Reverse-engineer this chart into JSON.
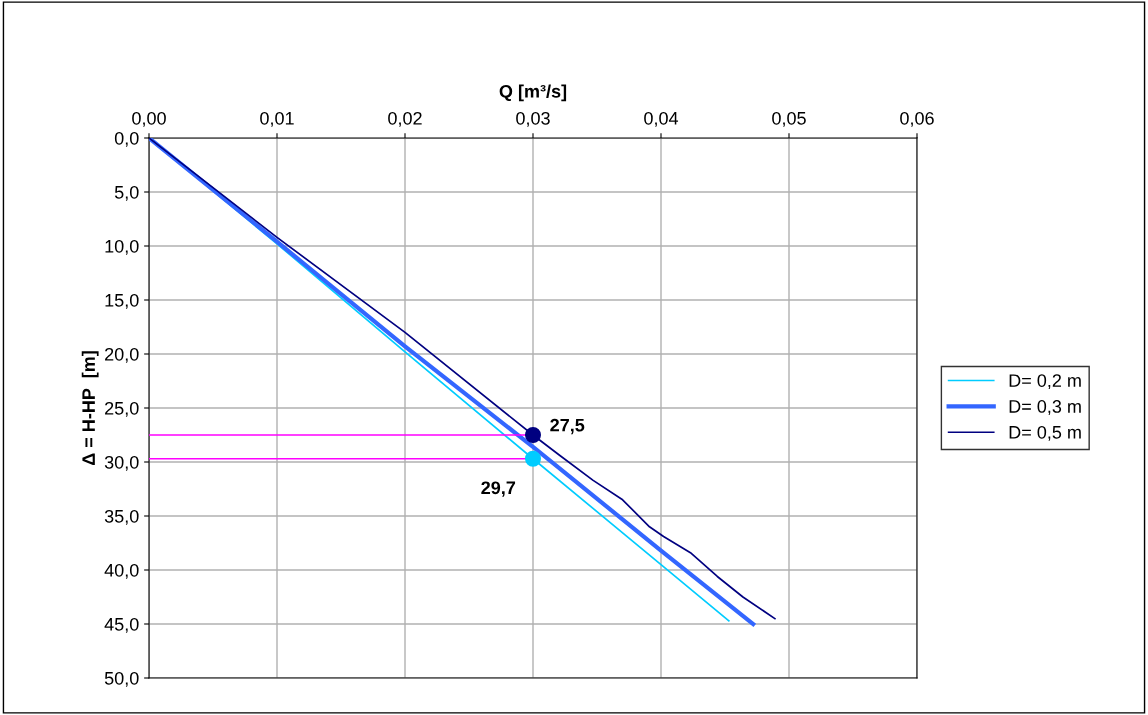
{
  "chart_data": {
    "type": "line",
    "xlabel": "Q [m³/s]",
    "ylabel": "Δ = H-HP  [m]",
    "xlim": [
      0,
      0.06
    ],
    "ylim": [
      50,
      0
    ],
    "xticks": [
      {
        "value": 0,
        "label": "0,00"
      },
      {
        "value": 0.01,
        "label": "0,01"
      },
      {
        "value": 0.02,
        "label": "0,02"
      },
      {
        "value": 0.03,
        "label": "0,03"
      },
      {
        "value": 0.04,
        "label": "0,04"
      },
      {
        "value": 0.05,
        "label": "0,05"
      },
      {
        "value": 0.06,
        "label": "0,06"
      }
    ],
    "yticks": [
      {
        "value": 0,
        "label": "0,0"
      },
      {
        "value": 5,
        "label": "5,0"
      },
      {
        "value": 10,
        "label": "10,0"
      },
      {
        "value": 15,
        "label": "15,0"
      },
      {
        "value": 20,
        "label": "20,0"
      },
      {
        "value": 25,
        "label": "25,0"
      },
      {
        "value": 30,
        "label": "30,0"
      },
      {
        "value": 35,
        "label": "35,0"
      },
      {
        "value": 40,
        "label": "40,0"
      },
      {
        "value": 45,
        "label": "45,0"
      },
      {
        "value": 50,
        "label": "50,0"
      }
    ],
    "grid": true,
    "legend": "right",
    "marker": "none",
    "series": [
      {
        "name": "D= 0,2 m",
        "color": "#00ccff",
        "x": [
          0,
          0.01,
          0.02,
          0.03,
          0.04,
          0.0453
        ],
        "values": [
          0,
          9.8,
          19.8,
          29.7,
          39.5,
          44.7
        ]
      },
      {
        "name": "D= 0,3 m",
        "color": "#3366ff",
        "x": [
          0,
          0.01,
          0.02,
          0.03,
          0.04,
          0.0472
        ],
        "values": [
          0,
          9.6,
          19.3,
          28.6,
          38.2,
          45.0
        ]
      },
      {
        "name": "D= 0,5 m",
        "color": "#000080",
        "x": [
          0,
          0.01,
          0.02,
          0.03,
          0.0321,
          0.0347,
          0.037,
          0.0391,
          0.0402,
          0.0423,
          0.0444,
          0.0464,
          0.0489
        ],
        "values": [
          0,
          9.2,
          18.0,
          27.5,
          29.4,
          31.7,
          33.5,
          36.0,
          36.9,
          38.4,
          40.6,
          42.5,
          44.5
        ]
      },
      {
        "color": "#ff00ff",
        "x": [
          0,
          0.03
        ],
        "values": [
          27.5,
          27.5
        ]
      },
      {
        "color": "#ff00ff",
        "x": [
          0,
          0.03
        ],
        "values": [
          29.7,
          29.7
        ]
      },
      {
        "type": "scatter",
        "marker": "circle",
        "color": "#000080",
        "x": [
          0.03
        ],
        "values": [
          27.5
        ],
        "value_labels": [
          "27,5"
        ]
      },
      {
        "type": "scatter",
        "marker": "circle",
        "color": "#00ccff",
        "x": [
          0.03
        ],
        "values": [
          29.7
        ],
        "value_labels": [
          "29,7"
        ]
      }
    ]
  }
}
